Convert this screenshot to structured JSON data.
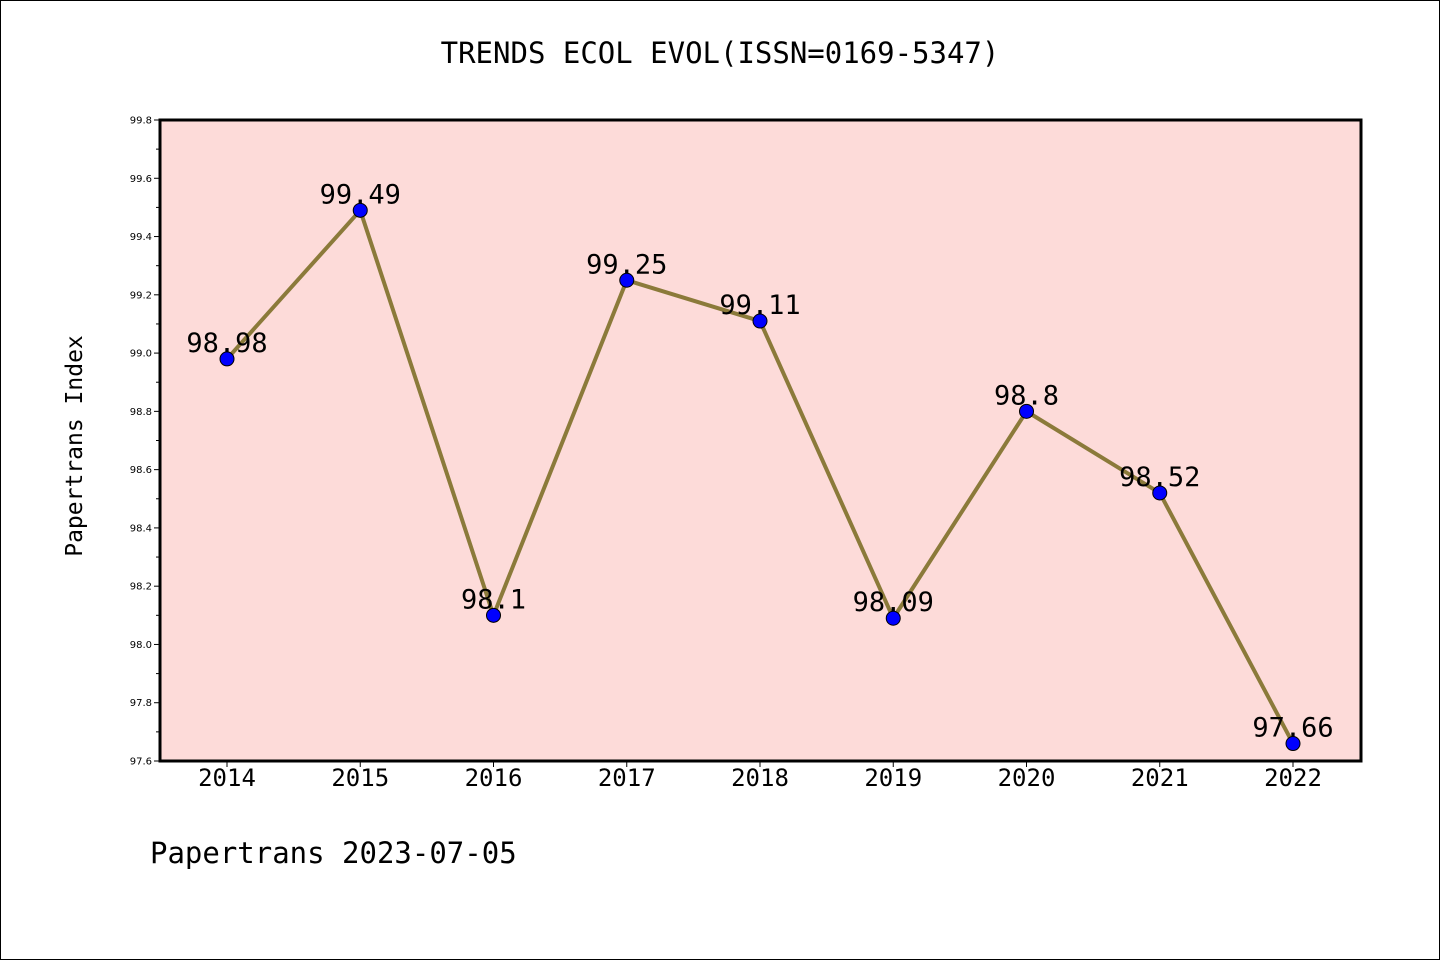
{
  "chart_data": {
    "type": "line",
    "title": "TRENDS ECOL EVOL(ISSN=0169-5347)",
    "xlabel": "",
    "ylabel": "Papertrans Index",
    "categories": [
      "2014",
      "2015",
      "2016",
      "2017",
      "2018",
      "2019",
      "2020",
      "2021",
      "2022"
    ],
    "series": [
      {
        "values": [
          98.98,
          99.49,
          98.1,
          99.25,
          99.11,
          98.09,
          98.8,
          98.52,
          97.66
        ],
        "labels": [
          "98.98",
          "99.49",
          "98.1",
          "99.25",
          "99.11",
          "98.09",
          "98.8",
          "98.52",
          "97.66"
        ]
      }
    ],
    "ylim": [
      97.6,
      99.8
    ],
    "yticks": [
      "97.6",
      "97.8",
      "98.0",
      "98.2",
      "98.4",
      "98.6",
      "98.8",
      "99.0",
      "99.2",
      "99.4",
      "99.6",
      "99.8"
    ],
    "grid": false,
    "line_color": "#8b7a3a",
    "marker_color": "#0000ff",
    "plot_background": "#fddbd9"
  },
  "footer": "Papertrans 2023-07-05"
}
